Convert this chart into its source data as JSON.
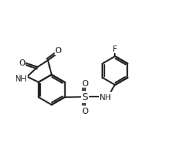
{
  "bg_color": "#ffffff",
  "line_color": "#1a1a1a",
  "line_width": 1.6,
  "font_size": 8.5,
  "xlim": [
    0,
    10
  ],
  "ylim": [
    0,
    8.5
  ]
}
